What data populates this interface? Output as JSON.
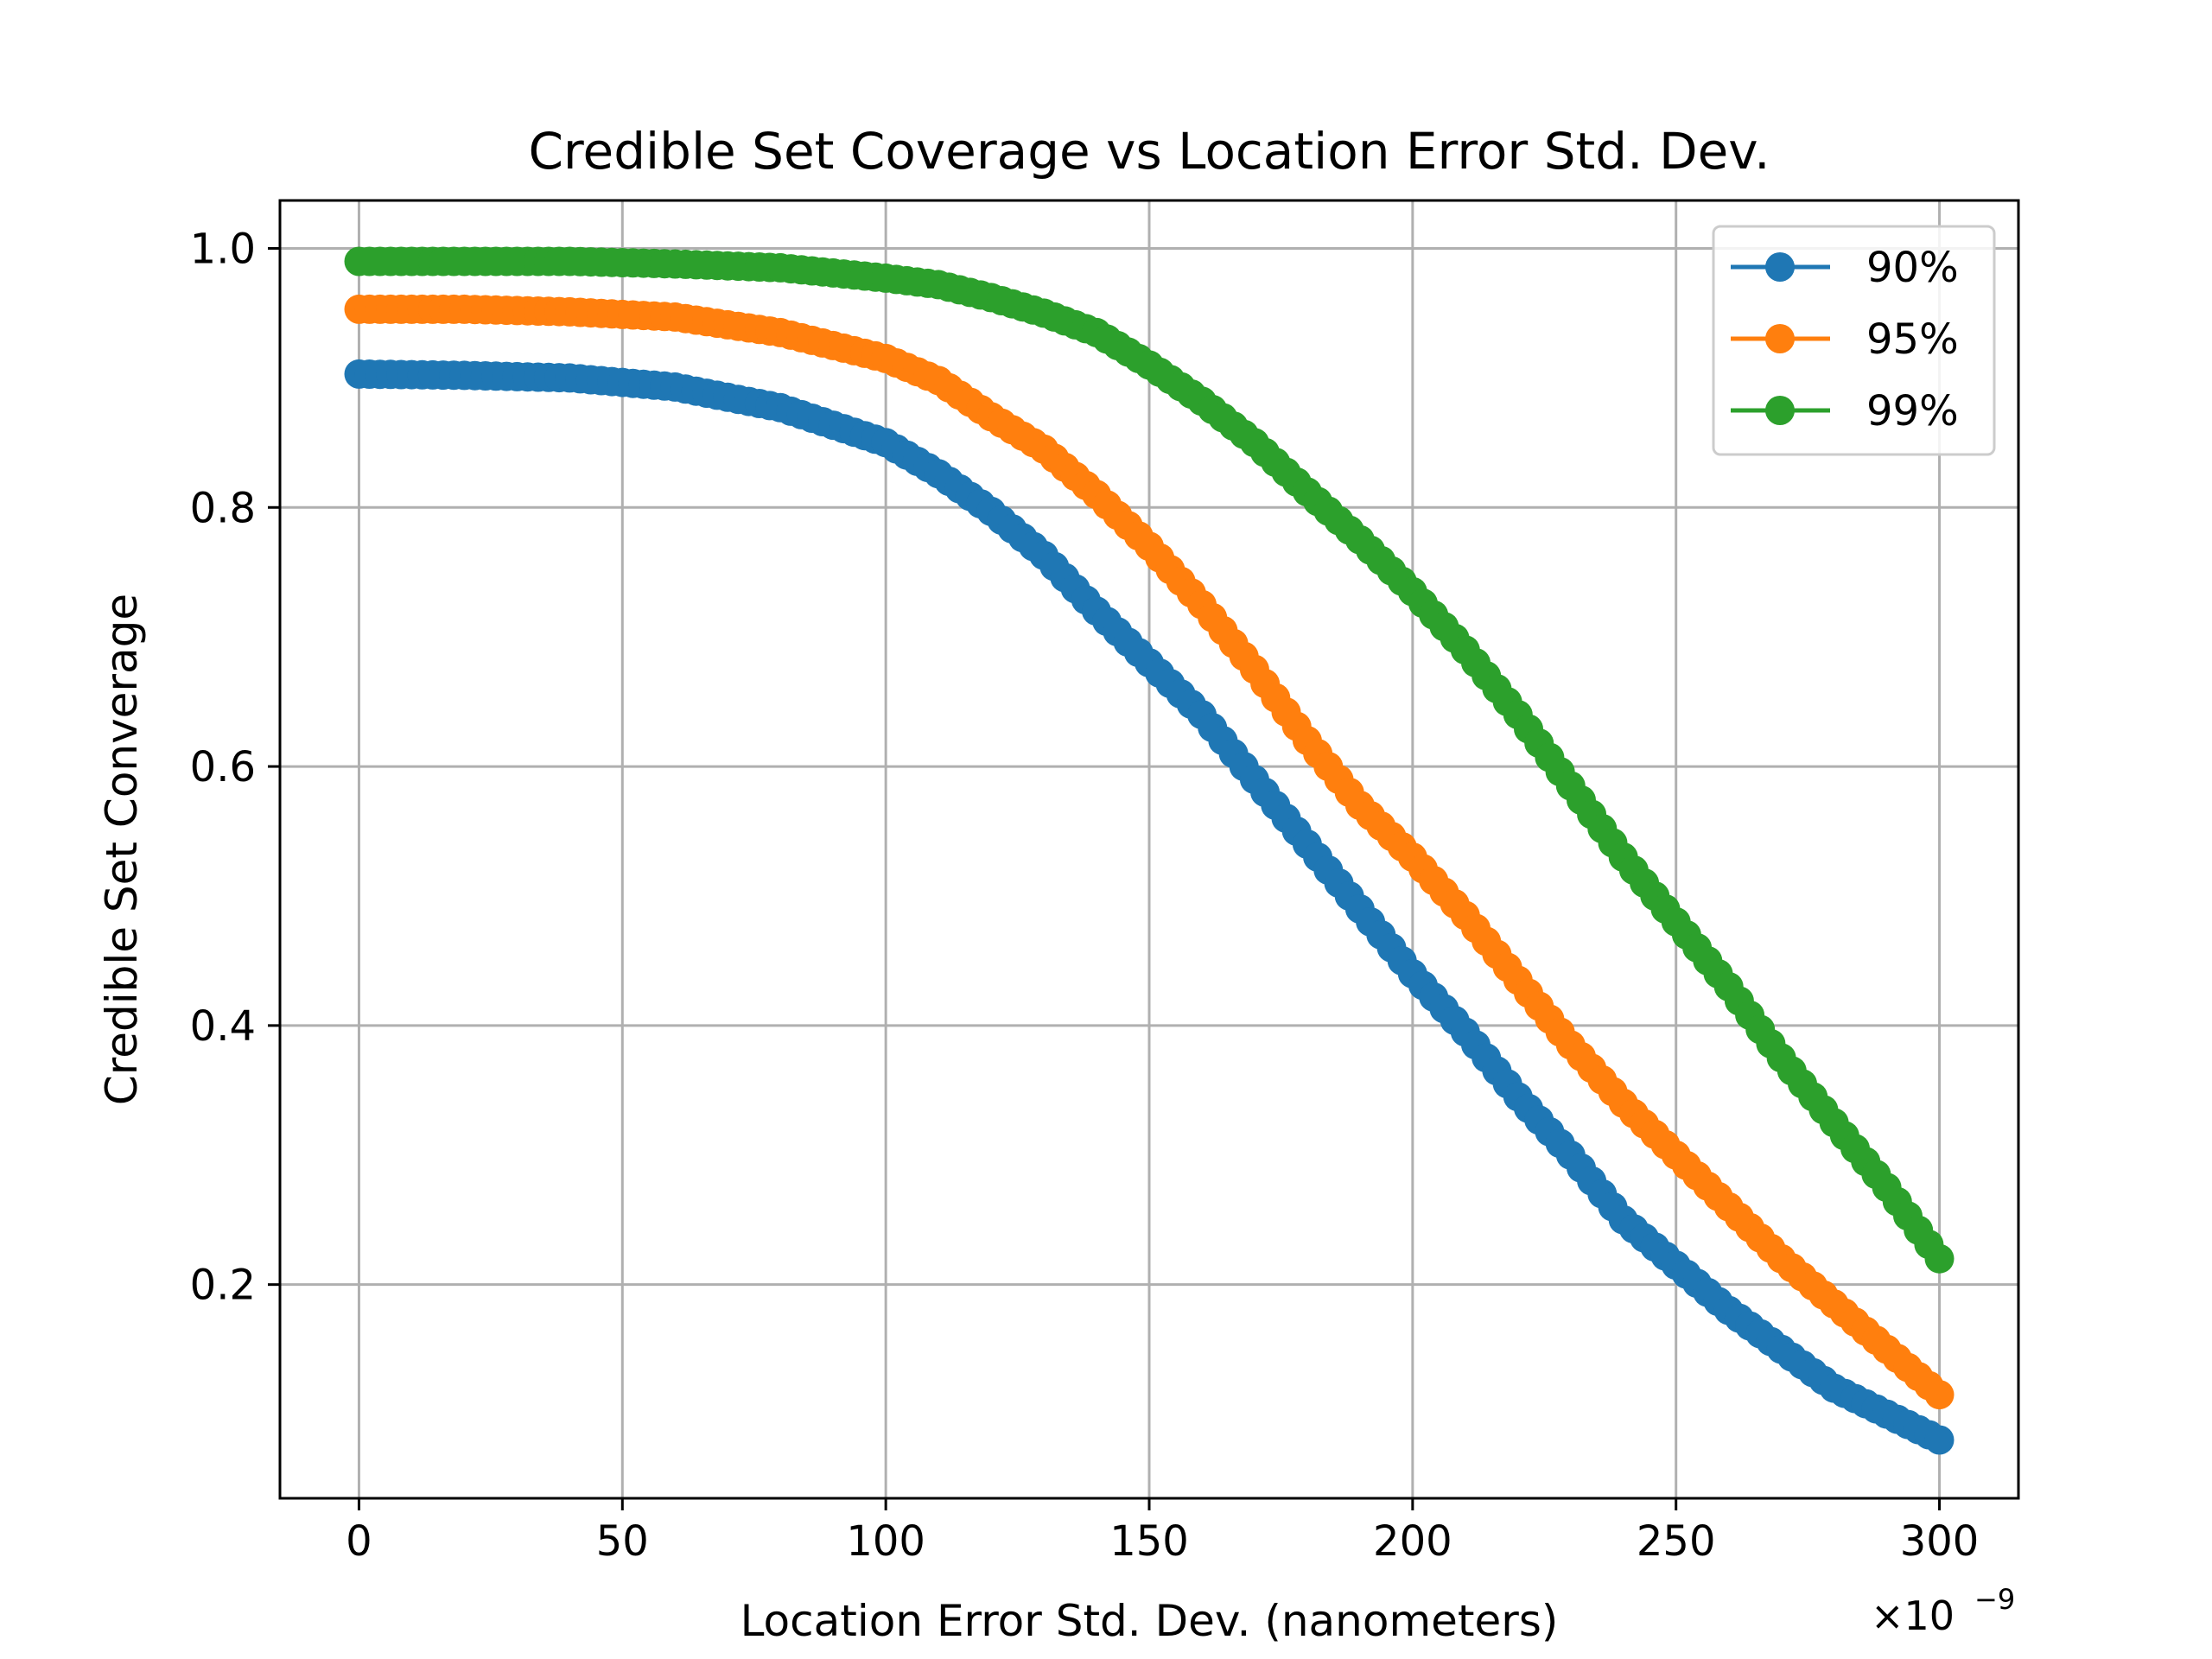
{
  "chart_data": {
    "type": "line",
    "title": "Credible Set Coverage vs Location Error Std. Dev.",
    "xlabel": "Location Error Std. Dev. (nanometers)",
    "ylabel": "Credible Set Converage",
    "x_offset_text": "×10",
    "x_offset_exponent": "−9",
    "xlim": [
      -15,
      315
    ],
    "ylim": [
      0.035,
      1.037
    ],
    "xticks": [
      0,
      50,
      100,
      150,
      200,
      250,
      300
    ],
    "xtick_labels": [
      "0",
      "50",
      "100",
      "150",
      "200",
      "250",
      "300"
    ],
    "yticks": [
      0.2,
      0.4,
      0.6,
      0.8,
      1.0
    ],
    "ytick_labels": [
      "0.2",
      "0.4",
      "0.6",
      "0.8",
      "1.0"
    ],
    "grid": true,
    "legend_position": "top-right",
    "x": [
      0,
      20,
      40,
      60,
      80,
      100,
      110,
      120,
      130,
      140,
      150,
      160,
      170,
      180,
      190,
      200,
      210,
      220,
      230,
      240,
      250,
      260,
      270,
      280,
      290,
      300
    ],
    "series": [
      {
        "name": "90%",
        "color": "#1f77b4",
        "values": [
          0.903,
          0.902,
          0.9,
          0.893,
          0.877,
          0.85,
          0.826,
          0.797,
          0.763,
          0.72,
          0.68,
          0.64,
          0.59,
          0.54,
          0.49,
          0.44,
          0.395,
          0.345,
          0.3,
          0.25,
          0.215,
          0.18,
          0.15,
          0.12,
          0.1,
          0.08
        ]
      },
      {
        "name": "95%",
        "color": "#ff7f0e",
        "values": [
          0.953,
          0.953,
          0.951,
          0.947,
          0.935,
          0.915,
          0.898,
          0.87,
          0.845,
          0.81,
          0.77,
          0.725,
          0.675,
          0.62,
          0.57,
          0.53,
          0.485,
          0.435,
          0.385,
          0.34,
          0.3,
          0.26,
          0.22,
          0.185,
          0.15,
          0.115
        ]
      },
      {
        "name": "99%",
        "color": "#2ca02c",
        "values": [
          0.99,
          0.99,
          0.99,
          0.988,
          0.985,
          0.977,
          0.972,
          0.962,
          0.95,
          0.935,
          0.91,
          0.882,
          0.85,
          0.812,
          0.775,
          0.735,
          0.69,
          0.64,
          0.585,
          0.53,
          0.48,
          0.43,
          0.375,
          0.325,
          0.275,
          0.22
        ]
      }
    ]
  }
}
